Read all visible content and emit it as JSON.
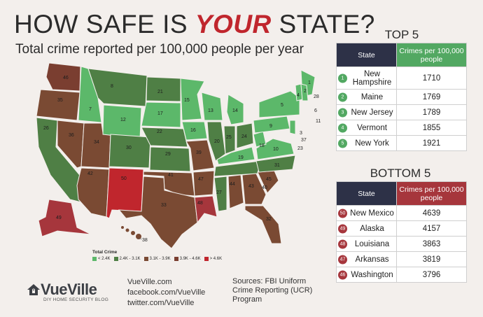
{
  "title": {
    "prefix": "HOW SAFE IS ",
    "emph": "YOUR",
    "suffix": " STATE?"
  },
  "subtitle": "Total crime reported per 100,000 people per year",
  "colors": {
    "lt2_4k": "#5cb86a",
    "k2_4_3_1": "#4f7f45",
    "k3_1_3_9": "#7a4a33",
    "k3_9_4_6": "#7a3e30",
    "gt4_6k": "#c0262d"
  },
  "legend": {
    "title": "Total Crime",
    "items": [
      "< 2.4K",
      "2.4K - 3.1K",
      "3.1K - 3.9K",
      "3.9K - 4.6K",
      "> 4.6K"
    ]
  },
  "map_labels": [
    "46",
    "35",
    "26",
    "36",
    "34",
    "42",
    "50",
    "49",
    "7",
    "12",
    "8",
    "21",
    "17",
    "22",
    "30",
    "29",
    "41",
    "33",
    "47",
    "48",
    "38",
    "15",
    "13",
    "16",
    "39",
    "27",
    "14",
    "2",
    "5",
    "10",
    "6",
    "11",
    "3",
    "37",
    "23",
    "20",
    "24",
    "25",
    "9",
    "18",
    "19",
    "31",
    "44",
    "43",
    "40",
    "45",
    "32",
    "28",
    "4",
    "1"
  ],
  "top5": {
    "heading": "TOP 5",
    "col_state": "State",
    "col_value": "Crimes per 100,000 people",
    "rows": [
      {
        "rank": "1",
        "state": "New Hampshire",
        "value": "1710"
      },
      {
        "rank": "2",
        "state": "Maine",
        "value": "1769"
      },
      {
        "rank": "3",
        "state": "New Jersey",
        "value": "1789"
      },
      {
        "rank": "4",
        "state": "Vermont",
        "value": "1855"
      },
      {
        "rank": "5",
        "state": "New York",
        "value": "1921"
      }
    ]
  },
  "bottom5": {
    "heading": "BOTTOM 5",
    "col_state": "State",
    "col_value": "Crimes per 100,000 people",
    "rows": [
      {
        "rank": "50",
        "state": "New Mexico",
        "value": "4639"
      },
      {
        "rank": "49",
        "state": "Alaska",
        "value": "4157"
      },
      {
        "rank": "48",
        "state": "Louisiana",
        "value": "3863"
      },
      {
        "rank": "47",
        "state": "Arkansas",
        "value": "3819"
      },
      {
        "rank": "46",
        "state": "Washington",
        "value": "3796"
      }
    ]
  },
  "brand": {
    "name_a": "Vue",
    "name_b": "Ville",
    "tagline": "DIY HOME SECURITY BLOG"
  },
  "links": [
    "VueVille.com",
    "facebook.com/VueVille",
    "twitter.com/VueVille"
  ],
  "sources": "Sources: FBI Uniform Crime Reporting (UCR) Program"
}
